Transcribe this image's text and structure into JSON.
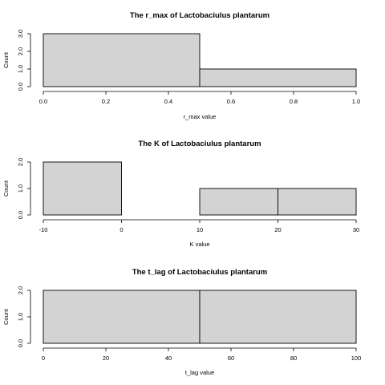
{
  "chart_data": [
    {
      "type": "bar",
      "title": "The r_max of Lactobaciulus plantarum",
      "xlabel": "r_max value",
      "ylabel": "Count",
      "bins": [
        [
          0,
          0.5
        ],
        [
          0.5,
          1.0
        ]
      ],
      "values": [
        3,
        1
      ],
      "xlim": [
        0,
        1.0
      ],
      "ylim": [
        0,
        3
      ],
      "xticks": [
        "0.0",
        "0.2",
        "0.4",
        "0.6",
        "0.8",
        "1.0"
      ],
      "yticks": [
        "0.0",
        "1.0",
        "2.0",
        "3.0"
      ],
      "bar_color": "#d3d3d3",
      "grid": false
    },
    {
      "type": "bar",
      "title": "The K of Lactobaciulus plantarum",
      "xlabel": "K value",
      "ylabel": "Count",
      "bins": [
        [
          -10,
          0
        ],
        [
          0,
          10
        ],
        [
          10,
          20
        ],
        [
          20,
          30
        ]
      ],
      "values": [
        2,
        0,
        1,
        1
      ],
      "xlim": [
        -10,
        30
      ],
      "ylim": [
        0,
        2
      ],
      "xticks": [
        "-10",
        "0",
        "10",
        "20",
        "30"
      ],
      "yticks": [
        "0.0",
        "1.0",
        "2.0"
      ],
      "bar_color": "#d3d3d3",
      "grid": false
    },
    {
      "type": "bar",
      "title": "The t_lag of Lactobaciulus plantarum",
      "xlabel": "t_lag value",
      "ylabel": "Count",
      "bins": [
        [
          0,
          50
        ],
        [
          50,
          100
        ]
      ],
      "values": [
        2,
        2
      ],
      "xlim": [
        0,
        100
      ],
      "ylim": [
        0,
        2
      ],
      "xticks": [
        "0",
        "20",
        "40",
        "60",
        "80",
        "100"
      ],
      "yticks": [
        "0.0",
        "1.0",
        "2.0"
      ],
      "bar_color": "#d3d3d3",
      "grid": false
    }
  ]
}
